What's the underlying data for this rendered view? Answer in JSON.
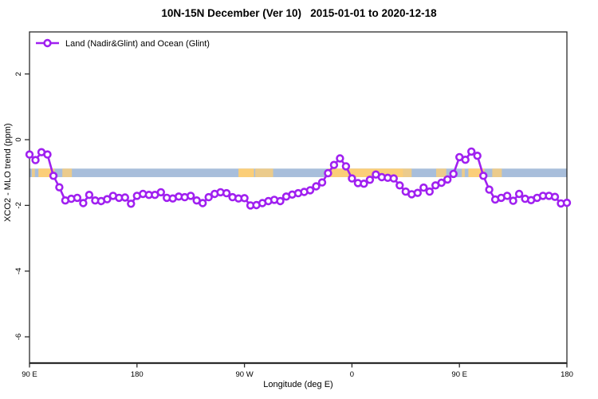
{
  "title": "10N-15N December (Ver 10)   2015-01-01 to 2020-12-18",
  "legend": {
    "label": "Land (Nadir&Glint) and Ocean (Glint)",
    "marker": "open-circle-on-line"
  },
  "colors": {
    "series_purple": "#A020F0",
    "ocean_band_blue": "#A8BEDB",
    "land_patch_orange": "#FBCE78",
    "axis_dark": "#2b2b2b"
  },
  "chart_data": {
    "type": "line",
    "title": "10N-15N December (Ver 10)   2015-01-01 to 2020-12-18",
    "xlabel": "Longitude (deg E)",
    "ylabel": "XCO2 - MLO trend (ppm)",
    "xlim": [
      90,
      540
    ],
    "ylim": [
      -6.8,
      3.28
    ],
    "grid": false,
    "legend_position": "top-left",
    "x_ticks": [
      {
        "x": 90,
        "label": "90 E"
      },
      {
        "x": 180,
        "label": "180"
      },
      {
        "x": 270,
        "label": "90 W"
      },
      {
        "x": 360,
        "label": "0"
      },
      {
        "x": 450,
        "label": "90 E"
      },
      {
        "x": 540,
        "label": "180"
      }
    ],
    "y_ticks": [
      {
        "y": 2,
        "label": "2"
      },
      {
        "y": 0,
        "label": "0"
      },
      {
        "y": -2,
        "label": "-2"
      },
      {
        "y": -4,
        "label": "-4"
      },
      {
        "y": -6,
        "label": "-6"
      }
    ],
    "series": [
      {
        "name": "Land (Nadir&Glint) and Ocean (Glint)",
        "color": "#A020F0",
        "marker": "open-circle",
        "x": [
          90,
          95,
          100,
          105,
          110,
          115,
          120,
          125,
          130,
          135,
          140,
          145,
          150,
          155,
          160,
          165,
          170,
          175,
          180,
          185,
          190,
          195,
          200,
          205,
          210,
          215,
          220,
          225,
          230,
          235,
          240,
          245,
          250,
          255,
          260,
          265,
          270,
          275,
          280,
          285,
          290,
          295,
          300,
          305,
          310,
          315,
          320,
          325,
          330,
          335,
          340,
          345,
          350,
          355,
          360,
          365,
          370,
          375,
          380,
          385,
          390,
          395,
          400,
          405,
          410,
          415,
          420,
          425,
          430,
          435,
          440,
          445,
          450,
          455,
          460,
          465,
          470,
          475,
          480,
          485,
          490,
          495,
          500,
          505,
          510,
          515,
          520,
          525,
          530,
          535,
          540
        ],
        "y": [
          -0.45,
          -0.62,
          -0.38,
          -0.45,
          -1.1,
          -1.45,
          -1.85,
          -1.8,
          -1.77,
          -1.93,
          -1.68,
          -1.85,
          -1.87,
          -1.81,
          -1.71,
          -1.77,
          -1.76,
          -1.95,
          -1.71,
          -1.65,
          -1.68,
          -1.68,
          -1.6,
          -1.77,
          -1.79,
          -1.73,
          -1.75,
          -1.71,
          -1.85,
          -1.93,
          -1.75,
          -1.65,
          -1.6,
          -1.63,
          -1.75,
          -1.79,
          -1.78,
          -2.0,
          -1.99,
          -1.93,
          -1.87,
          -1.83,
          -1.87,
          -1.73,
          -1.67,
          -1.63,
          -1.59,
          -1.54,
          -1.42,
          -1.3,
          -1.02,
          -0.77,
          -0.57,
          -0.81,
          -1.18,
          -1.32,
          -1.34,
          -1.22,
          -1.06,
          -1.14,
          -1.16,
          -1.18,
          -1.39,
          -1.58,
          -1.66,
          -1.62,
          -1.46,
          -1.58,
          -1.39,
          -1.31,
          -1.21,
          -1.04,
          -0.53,
          -0.61,
          -0.36,
          -0.49,
          -1.1,
          -1.52,
          -1.82,
          -1.77,
          -1.71,
          -1.86,
          -1.65,
          -1.8,
          -1.84,
          -1.77,
          -1.71,
          -1.71,
          -1.74,
          -1.94,
          -1.92
        ]
      }
    ],
    "annotations": {
      "ocean_band": {
        "y_from": -0.88,
        "y_to": -1.14,
        "color": "#A8BEDB"
      },
      "land_patches": {
        "color": "#FBCE78",
        "ranges": [
          {
            "from": 92,
            "to": 94.5,
            "solid": false
          },
          {
            "from": 97.5,
            "to": 111,
            "solid": true
          },
          {
            "from": 117.5,
            "to": 125.5,
            "solid": false
          },
          {
            "from": 265,
            "to": 278,
            "solid": true
          },
          {
            "from": 279,
            "to": 294,
            "solid": false
          },
          {
            "from": 340,
            "to": 403,
            "solid": true
          },
          {
            "from": 403,
            "to": 410,
            "solid": false
          },
          {
            "from": 430.5,
            "to": 439,
            "solid": false
          },
          {
            "from": 452,
            "to": 454.5,
            "solid": false
          },
          {
            "from": 457.5,
            "to": 471,
            "solid": true
          },
          {
            "from": 477.5,
            "to": 485.5,
            "solid": false
          }
        ]
      }
    }
  }
}
